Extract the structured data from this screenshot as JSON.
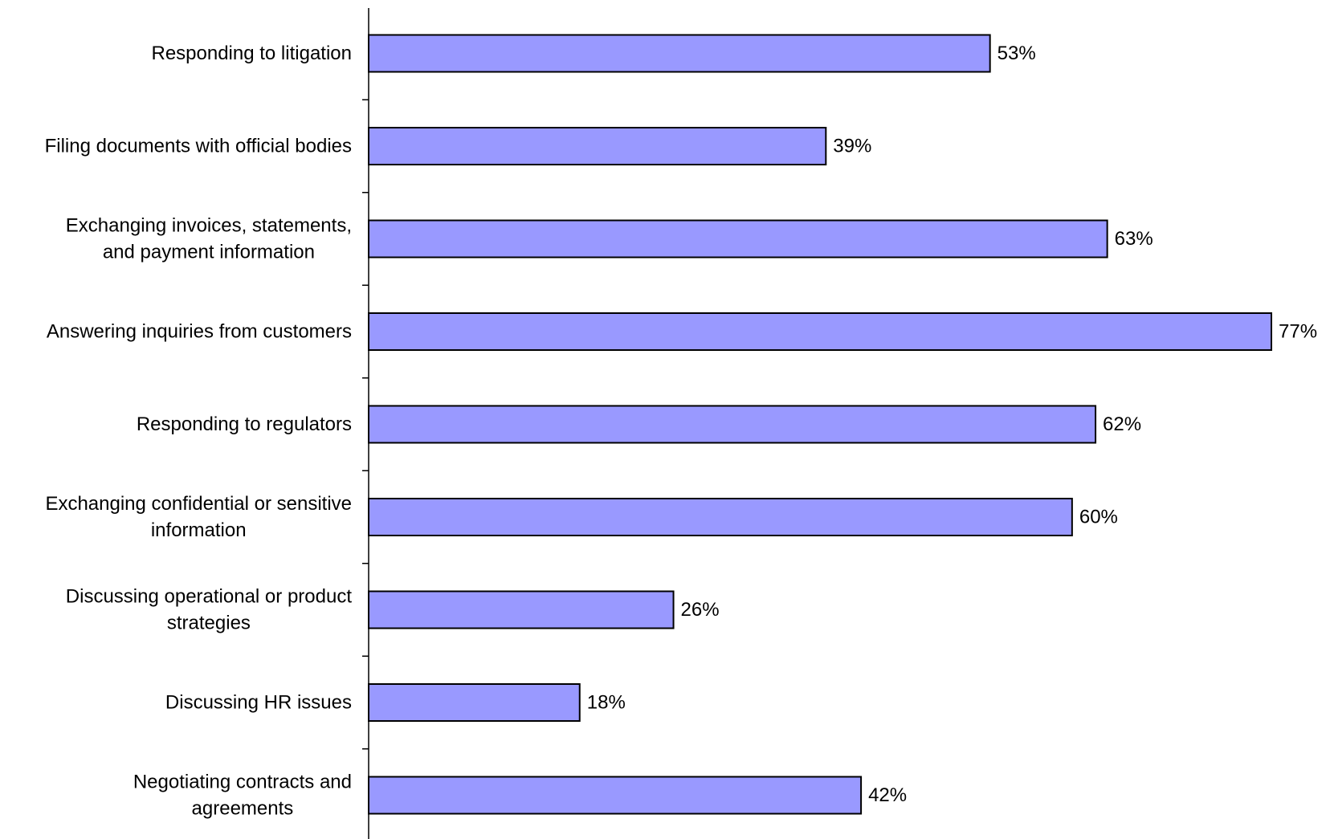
{
  "chart_data": {
    "type": "bar",
    "orientation": "horizontal",
    "title": "",
    "xlabel": "",
    "ylabel": "",
    "value_suffix": "%",
    "xlim": [
      0,
      80
    ],
    "grid": false,
    "legend": "none",
    "bar_color": "#9999ff",
    "bar_edge_color": "#000000",
    "categories": [
      [
        "Responding to litigation"
      ],
      [
        "Filing documents with official bodies"
      ],
      [
        "Exchanging invoices, statements,",
        "and payment information"
      ],
      [
        "Answering inquiries from customers"
      ],
      [
        "Responding to regulators"
      ],
      [
        "Exchanging confidential or sensitive",
        "information"
      ],
      [
        "Discussing operational or product",
        "strategies"
      ],
      [
        "Discussing HR issues"
      ],
      [
        "Negotiating contracts and",
        "agreements"
      ]
    ],
    "values": [
      53,
      39,
      63,
      77,
      62,
      60,
      26,
      18,
      42
    ]
  }
}
